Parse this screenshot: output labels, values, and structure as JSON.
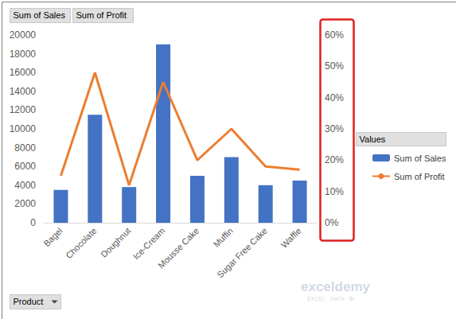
{
  "chart_data": {
    "type": "bar",
    "categories": [
      "Bagel",
      "Chocolate",
      "Doughnut",
      "Ice-Cream",
      "Mousse Cake",
      "Muffin",
      "Sugar Free Cake",
      "Waffle"
    ],
    "series": [
      {
        "name": "Sum of Sales",
        "type": "bar",
        "color": "#4472c4",
        "values": [
          3500,
          11500,
          3800,
          19000,
          5000,
          7000,
          4000,
          4500
        ]
      },
      {
        "name": "Sum of Profit",
        "type": "line",
        "color": "#ed7d31",
        "axis": "y2",
        "values": [
          15,
          48,
          12,
          45,
          20,
          30,
          18,
          17
        ]
      }
    ],
    "ylim": [
      0,
      20000
    ],
    "yticks": [
      0,
      2000,
      4000,
      6000,
      8000,
      10000,
      12000,
      14000,
      16000,
      18000,
      20000
    ],
    "y2lim": [
      0,
      60
    ],
    "y2ticks": [
      {
        "value": 0,
        "label": "0%"
      },
      {
        "value": 10,
        "label": "10%"
      },
      {
        "value": 20,
        "label": "20%"
      },
      {
        "value": 30,
        "label": "30%"
      },
      {
        "value": 40,
        "label": "40%"
      },
      {
        "value": 50,
        "label": "50%"
      },
      {
        "value": 60,
        "label": "60%"
      }
    ],
    "grid": false,
    "legend": "right",
    "legend_title": "Values",
    "field_buttons": [
      "Sum of Sales",
      "Sum of Profit"
    ],
    "axis_field_button": "Product",
    "watermark": [
      "exceldemy",
      "EXCEL · DATA · BI"
    ]
  }
}
